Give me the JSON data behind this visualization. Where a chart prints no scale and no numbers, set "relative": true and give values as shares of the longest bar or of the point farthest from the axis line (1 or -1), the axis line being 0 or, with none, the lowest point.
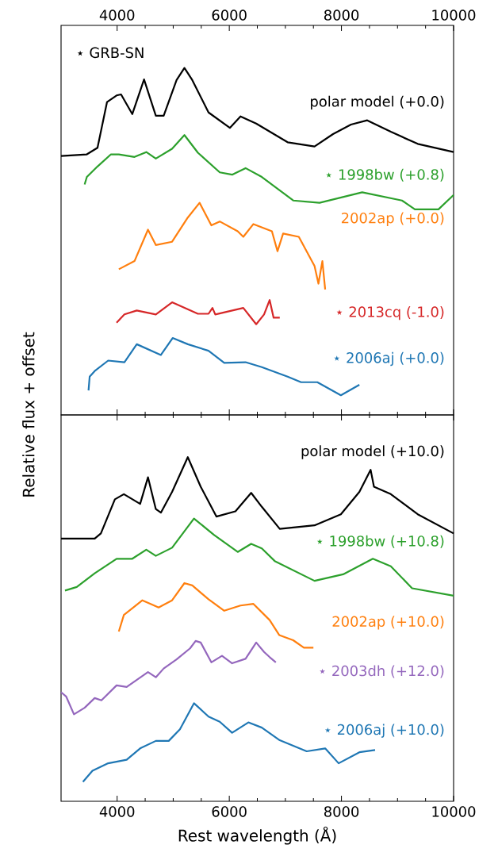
{
  "chart_data": [
    {
      "type": "line",
      "relative": true,
      "ylabel": "Relative flux + offset",
      "tick_labels": "x",
      "xlim": [
        3000,
        10000
      ],
      "xticks": [
        4000,
        6000,
        8000,
        10000
      ],
      "annotations": [
        "⋆ GRB-SN"
      ],
      "series": [
        {
          "name": "polar model (+0.0)",
          "color": "#000000",
          "x": [
            3000,
            3460,
            3650,
            3820,
            3990,
            4070,
            4270,
            4480,
            4690,
            4830,
            5060,
            5200,
            5340,
            5630,
            6010,
            6200,
            6480,
            7040,
            7520,
            7850,
            8170,
            8460,
            8880,
            9360,
            10000
          ],
          "values": [
            0.731,
            0.736,
            0.756,
            0.896,
            0.916,
            0.919,
            0.859,
            0.965,
            0.854,
            0.854,
            0.963,
            1.0,
            0.963,
            0.864,
            0.817,
            0.852,
            0.83,
            0.773,
            0.76,
            0.798,
            0.827,
            0.84,
            0.805,
            0.768,
            0.743
          ]
        },
        {
          "name": "⋆ 1998bw (+0.8)",
          "color": "#2ca02c",
          "x": [
            3420,
            3460,
            3650,
            3890,
            4030,
            4310,
            4520,
            4690,
            4980,
            5200,
            5440,
            5830,
            6050,
            6290,
            6580,
            7140,
            7610,
            8370,
            9080,
            9310,
            9730,
            10000
          ],
          "values": [
            0.644,
            0.667,
            0.699,
            0.736,
            0.736,
            0.728,
            0.743,
            0.723,
            0.753,
            0.795,
            0.741,
            0.681,
            0.674,
            0.694,
            0.667,
            0.595,
            0.588,
            0.62,
            0.595,
            0.568,
            0.568,
            0.612
          ]
        },
        {
          "name": "2002ap (+0.0)",
          "color": "#ff7f0e",
          "x": [
            4030,
            4310,
            4550,
            4690,
            4980,
            5260,
            5470,
            5680,
            5830,
            6150,
            6250,
            6430,
            6760,
            6860,
            6960,
            7240,
            7520,
            7590,
            7660,
            7710
          ],
          "values": [
            0.385,
            0.41,
            0.506,
            0.459,
            0.469,
            0.543,
            0.588,
            0.519,
            0.531,
            0.501,
            0.484,
            0.523,
            0.501,
            0.44,
            0.494,
            0.484,
            0.395,
            0.341,
            0.41,
            0.323
          ]
        },
        {
          "name": "⋆ 2013cq (-1.0)",
          "color": "#d62728",
          "x": [
            3990,
            4130,
            4350,
            4690,
            4980,
            5440,
            5630,
            5700,
            5750,
            6250,
            6480,
            6620,
            6720,
            6790,
            6900
          ],
          "values": [
            0.222,
            0.247,
            0.259,
            0.247,
            0.284,
            0.249,
            0.249,
            0.267,
            0.247,
            0.267,
            0.217,
            0.247,
            0.291,
            0.237,
            0.237
          ]
        },
        {
          "name": "⋆ 2006aj (+0.0)",
          "color": "#1f77b4",
          "x": [
            3490,
            3510,
            3600,
            3840,
            4130,
            4350,
            4780,
            4990,
            5260,
            5630,
            5910,
            6290,
            6580,
            7040,
            7280,
            7570,
            7990,
            8320
          ],
          "values": [
            0.015,
            0.057,
            0.074,
            0.106,
            0.101,
            0.156,
            0.123,
            0.175,
            0.156,
            0.136,
            0.099,
            0.101,
            0.086,
            0.057,
            0.04,
            0.04,
            0.0,
            0.032
          ]
        }
      ]
    },
    {
      "type": "line",
      "relative": true,
      "xlabel": "Rest wavelength (Å)",
      "tick_labels": "x",
      "xlim": [
        3000,
        10000
      ],
      "xticks": [
        4000,
        6000,
        8000,
        10000
      ],
      "series": [
        {
          "name": "polar model (+10.0)",
          "color": "#000000",
          "x": [
            3000,
            3600,
            3710,
            3960,
            4120,
            4410,
            4550,
            4690,
            4780,
            4980,
            5260,
            5490,
            5770,
            6110,
            6390,
            6580,
            6900,
            7520,
            7990,
            8320,
            8520,
            8580,
            8880,
            9360,
            10000
          ],
          "values": [
            0.749,
            0.749,
            0.765,
            0.87,
            0.886,
            0.856,
            0.938,
            0.84,
            0.829,
            0.893,
            1.0,
            0.909,
            0.817,
            0.833,
            0.89,
            0.847,
            0.779,
            0.79,
            0.824,
            0.893,
            0.961,
            0.909,
            0.886,
            0.824,
            0.765
          ]
        },
        {
          "name": "⋆ 1998bw (+10.8)",
          "color": "#2ca02c",
          "x": [
            3070,
            3280,
            3600,
            3990,
            4270,
            4520,
            4690,
            4980,
            5370,
            5730,
            6150,
            6390,
            6580,
            6810,
            7520,
            8030,
            8560,
            8880,
            9260,
            10000
          ],
          "values": [
            0.589,
            0.6,
            0.642,
            0.687,
            0.687,
            0.715,
            0.696,
            0.721,
            0.811,
            0.76,
            0.708,
            0.733,
            0.719,
            0.68,
            0.619,
            0.639,
            0.687,
            0.664,
            0.596,
            0.573
          ]
        },
        {
          "name": "2002ap (+10.0)",
          "color": "#ff7f0e",
          "x": [
            4030,
            4120,
            4450,
            4740,
            4980,
            5200,
            5340,
            5630,
            5910,
            6200,
            6430,
            6720,
            6890,
            7140,
            7330,
            7500
          ],
          "values": [
            0.463,
            0.514,
            0.559,
            0.537,
            0.559,
            0.612,
            0.605,
            0.562,
            0.527,
            0.543,
            0.548,
            0.498,
            0.452,
            0.436,
            0.413,
            0.413
          ]
        },
        {
          "name": "⋆ 2003dh (+12.0)",
          "color": "#9467bd",
          "x": [
            3000,
            3090,
            3230,
            3420,
            3600,
            3720,
            3990,
            4170,
            4550,
            4690,
            4830,
            5060,
            5300,
            5400,
            5490,
            5680,
            5870,
            6050,
            6290,
            6480,
            6620,
            6720,
            6830
          ],
          "values": [
            0.276,
            0.263,
            0.208,
            0.228,
            0.258,
            0.251,
            0.297,
            0.292,
            0.338,
            0.322,
            0.349,
            0.377,
            0.411,
            0.434,
            0.429,
            0.368,
            0.388,
            0.365,
            0.379,
            0.429,
            0.4,
            0.384,
            0.368
          ]
        },
        {
          "name": "⋆ 2006aj (+10.0)",
          "color": "#1f77b4",
          "x": [
            3390,
            3560,
            3840,
            4170,
            4410,
            4690,
            4920,
            5120,
            5370,
            5630,
            5830,
            6050,
            6340,
            6580,
            6900,
            7380,
            7710,
            7950,
            8320,
            8600
          ],
          "values": [
            0.0,
            0.034,
            0.057,
            0.068,
            0.103,
            0.126,
            0.126,
            0.162,
            0.242,
            0.201,
            0.185,
            0.151,
            0.183,
            0.167,
            0.128,
            0.094,
            0.103,
            0.057,
            0.091,
            0.098
          ]
        }
      ]
    }
  ]
}
